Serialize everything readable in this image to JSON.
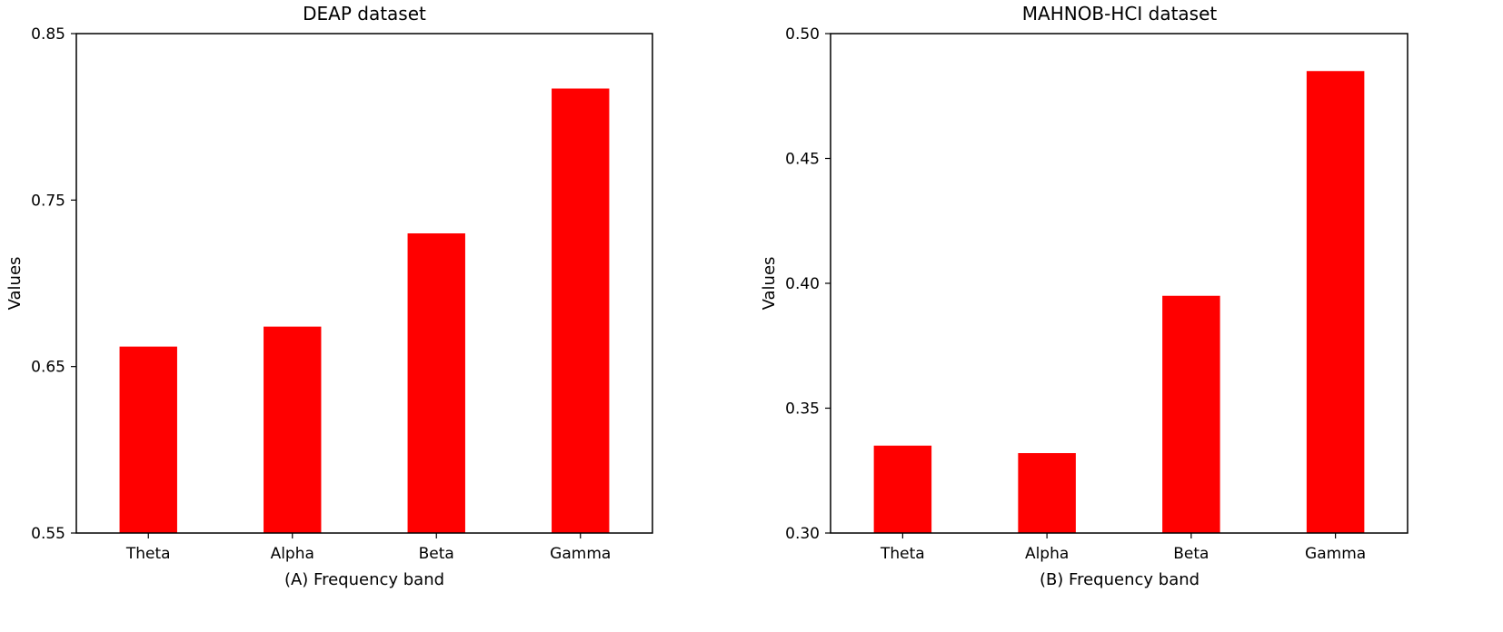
{
  "chart_data": [
    {
      "type": "bar",
      "title": "DEAP dataset",
      "xlabel": "(A) Frequency band",
      "ylabel": "Values",
      "categories": [
        "Theta",
        "Alpha",
        "Beta",
        "Gamma"
      ],
      "values": [
        0.662,
        0.674,
        0.73,
        0.817
      ],
      "ylim": [
        0.55,
        0.85
      ],
      "yticks": [
        "0.55",
        "0.65",
        "0.75",
        "0.85"
      ],
      "grid": false,
      "bar_color": "#ff0000"
    },
    {
      "type": "bar",
      "title": "MAHNOB-HCI dataset",
      "xlabel": "(B) Frequency band",
      "ylabel": "Values",
      "categories": [
        "Theta",
        "Alpha",
        "Beta",
        "Gamma"
      ],
      "values": [
        0.335,
        0.332,
        0.395,
        0.485
      ],
      "ylim": [
        0.3,
        0.5
      ],
      "yticks": [
        "0.30",
        "0.35",
        "0.40",
        "0.45",
        "0.50"
      ],
      "grid": false,
      "bar_color": "#ff0000"
    }
  ]
}
